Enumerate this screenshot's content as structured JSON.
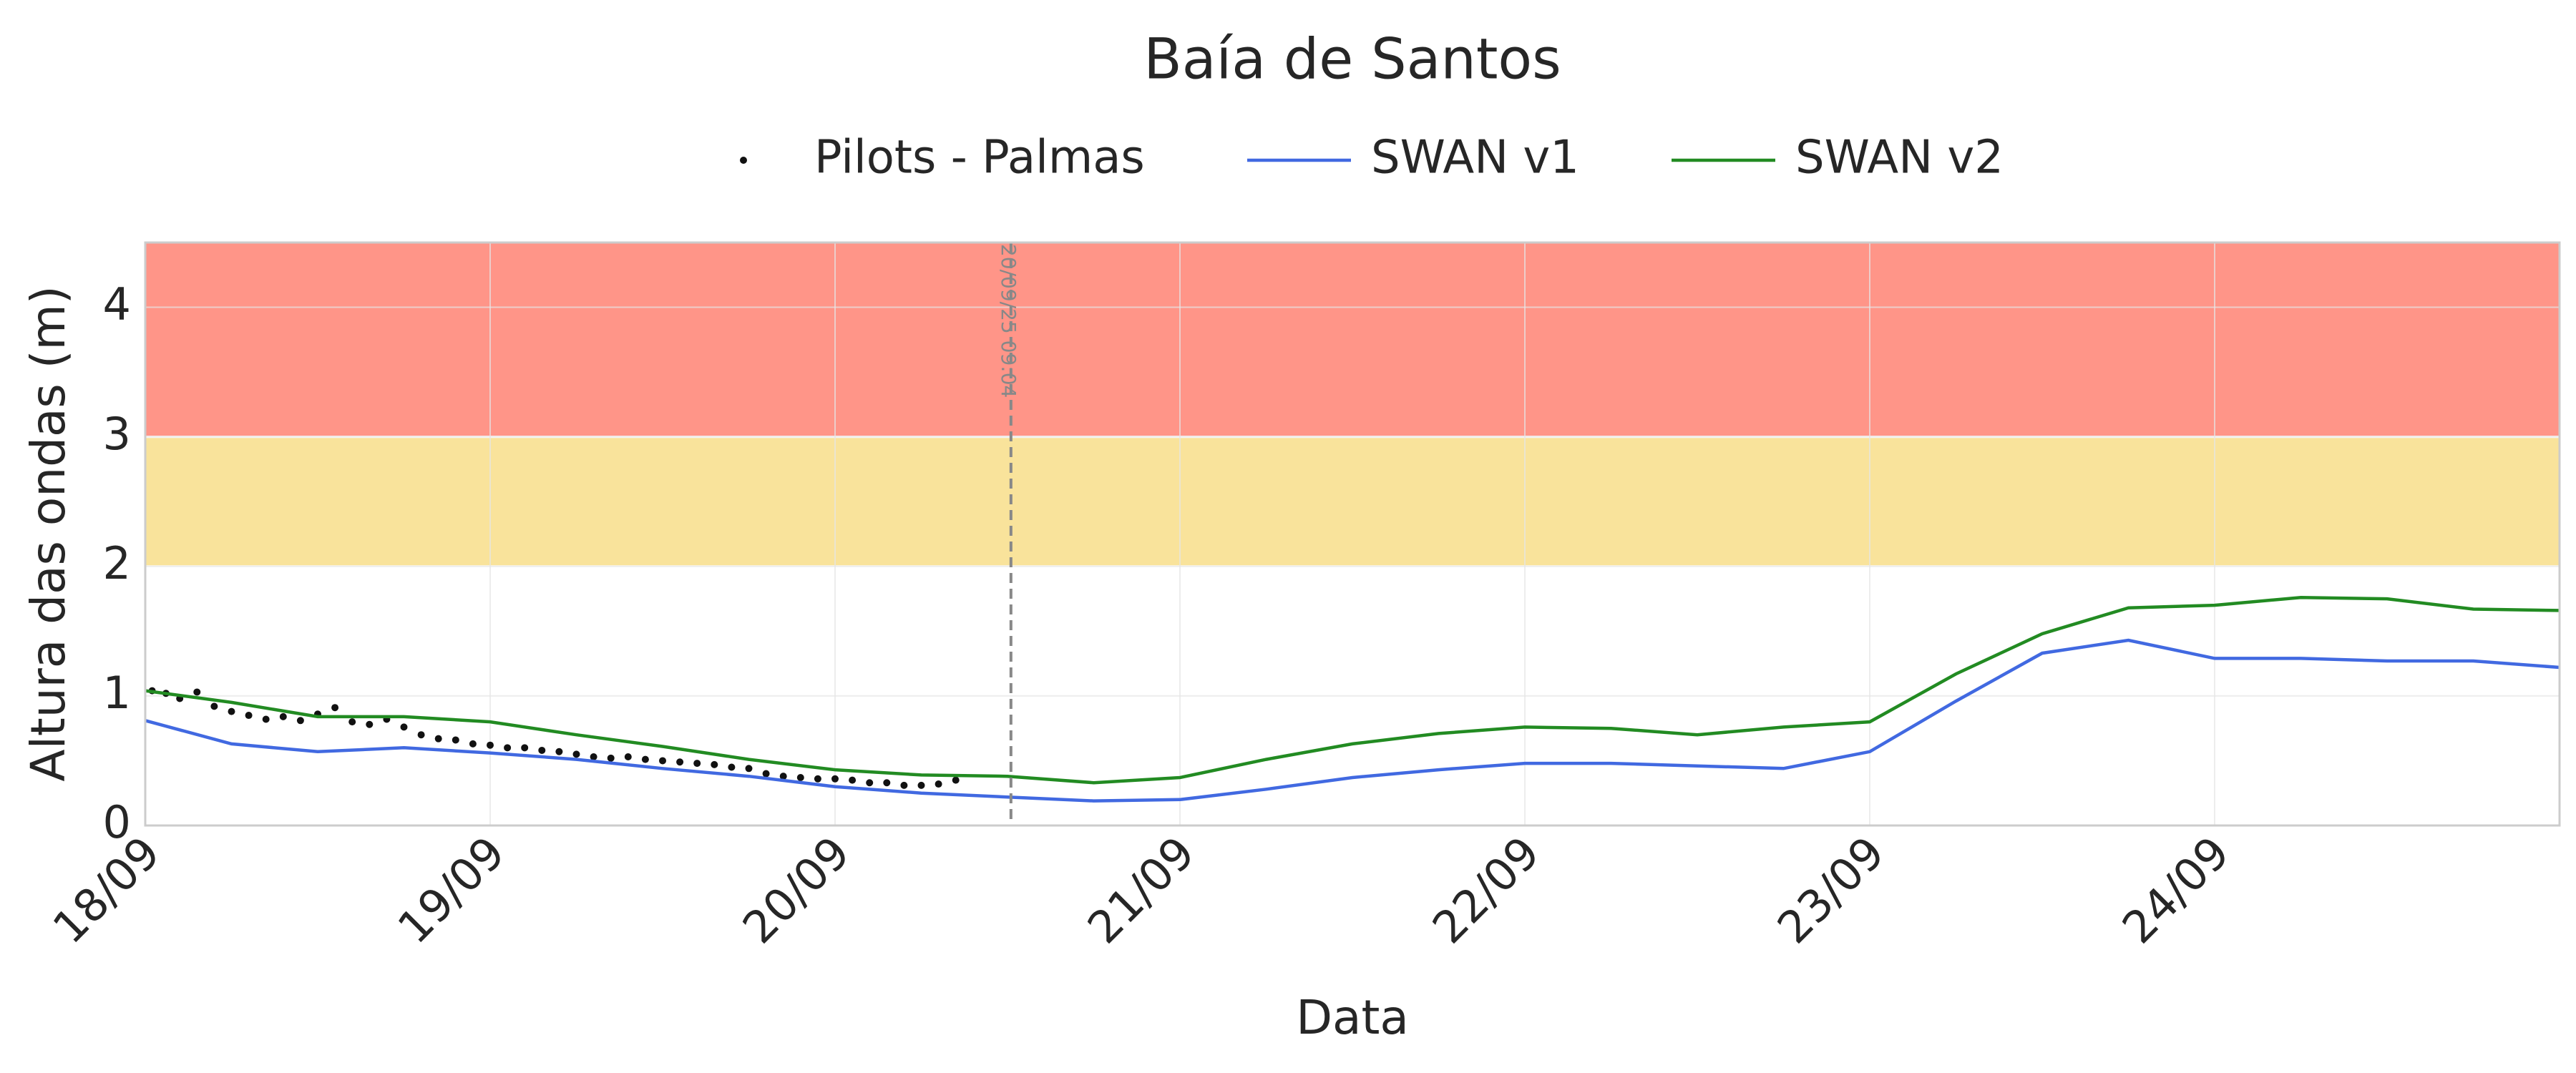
{
  "chart_data": {
    "type": "line",
    "title": "Baía de Santos",
    "xlabel": "Data",
    "ylabel": "Altura das ondas (m)",
    "xlim": [
      18,
      25
    ],
    "xticks": [
      {
        "value": 18,
        "label": "18/09"
      },
      {
        "value": 19,
        "label": "19/09"
      },
      {
        "value": 20,
        "label": "20/09"
      },
      {
        "value": 21,
        "label": "21/09"
      },
      {
        "value": 22,
        "label": "22/09"
      },
      {
        "value": 23,
        "label": "23/09"
      },
      {
        "value": 24,
        "label": "24/09"
      }
    ],
    "ylim": [
      0,
      4.5
    ],
    "yticks": [
      0,
      1,
      2,
      3,
      4
    ],
    "grid": true,
    "bands": [
      {
        "range": [
          2,
          3
        ],
        "color": "#f9e39b"
      },
      {
        "range": [
          3,
          4.5
        ],
        "color": "#ff9588"
      }
    ],
    "vline": {
      "x": 20.51,
      "label": "20/09/25 09:04",
      "color": "#888888"
    },
    "series": [
      {
        "name": "Pilots - Palmas",
        "type": "scatter",
        "color": "#111111",
        "x": [
          18.02,
          18.06,
          18.1,
          18.15,
          18.2,
          18.25,
          18.3,
          18.35,
          18.4,
          18.45,
          18.5,
          18.55,
          18.6,
          18.65,
          18.7,
          18.75,
          18.8,
          18.85,
          18.9,
          18.95,
          19.0,
          19.05,
          19.1,
          19.15,
          19.2,
          19.25,
          19.3,
          19.35,
          19.4,
          19.45,
          19.5,
          19.55,
          19.6,
          19.65,
          19.7,
          19.75,
          19.8,
          19.85,
          19.9,
          19.95,
          20.0,
          20.05,
          20.1,
          20.15,
          20.2,
          20.25,
          20.3,
          20.35
        ],
        "values": [
          1.04,
          1.02,
          0.98,
          1.03,
          0.92,
          0.88,
          0.85,
          0.82,
          0.84,
          0.81,
          0.86,
          0.91,
          0.8,
          0.78,
          0.82,
          0.76,
          0.7,
          0.67,
          0.66,
          0.63,
          0.62,
          0.6,
          0.6,
          0.58,
          0.57,
          0.55,
          0.53,
          0.52,
          0.53,
          0.51,
          0.5,
          0.49,
          0.48,
          0.47,
          0.45,
          0.44,
          0.4,
          0.38,
          0.37,
          0.36,
          0.36,
          0.35,
          0.33,
          0.33,
          0.31,
          0.31,
          0.32,
          0.35
        ]
      },
      {
        "name": "SWAN v1",
        "type": "line",
        "color": "#4169e1",
        "x": [
          18.0,
          18.25,
          18.5,
          18.75,
          19.0,
          19.25,
          19.5,
          19.75,
          20.0,
          20.25,
          20.5,
          20.75,
          21.0,
          21.25,
          21.5,
          21.75,
          22.0,
          22.25,
          22.5,
          22.75,
          23.0,
          23.25,
          23.5,
          23.75,
          24.0,
          24.25,
          24.5,
          24.75,
          25.0
        ],
        "values": [
          0.81,
          0.63,
          0.57,
          0.6,
          0.56,
          0.51,
          0.44,
          0.38,
          0.3,
          0.25,
          0.22,
          0.19,
          0.2,
          0.28,
          0.37,
          0.43,
          0.48,
          0.48,
          0.46,
          0.44,
          0.57,
          0.96,
          1.33,
          1.43,
          1.29,
          1.29,
          1.27,
          1.27,
          1.22
        ]
      },
      {
        "name": "SWAN v2",
        "type": "line",
        "color": "#228b22",
        "x": [
          18.0,
          18.25,
          18.5,
          18.75,
          19.0,
          19.25,
          19.5,
          19.75,
          20.0,
          20.25,
          20.5,
          20.75,
          21.0,
          21.25,
          21.5,
          21.75,
          22.0,
          22.25,
          22.5,
          22.75,
          23.0,
          23.25,
          23.5,
          23.75,
          24.0,
          24.25,
          24.5,
          24.75,
          25.0
        ],
        "values": [
          1.04,
          0.95,
          0.84,
          0.84,
          0.8,
          0.7,
          0.61,
          0.51,
          0.43,
          0.39,
          0.38,
          0.33,
          0.37,
          0.51,
          0.63,
          0.71,
          0.76,
          0.75,
          0.7,
          0.76,
          0.8,
          1.17,
          1.48,
          1.68,
          1.7,
          1.76,
          1.75,
          1.67,
          1.66
        ]
      }
    ]
  }
}
